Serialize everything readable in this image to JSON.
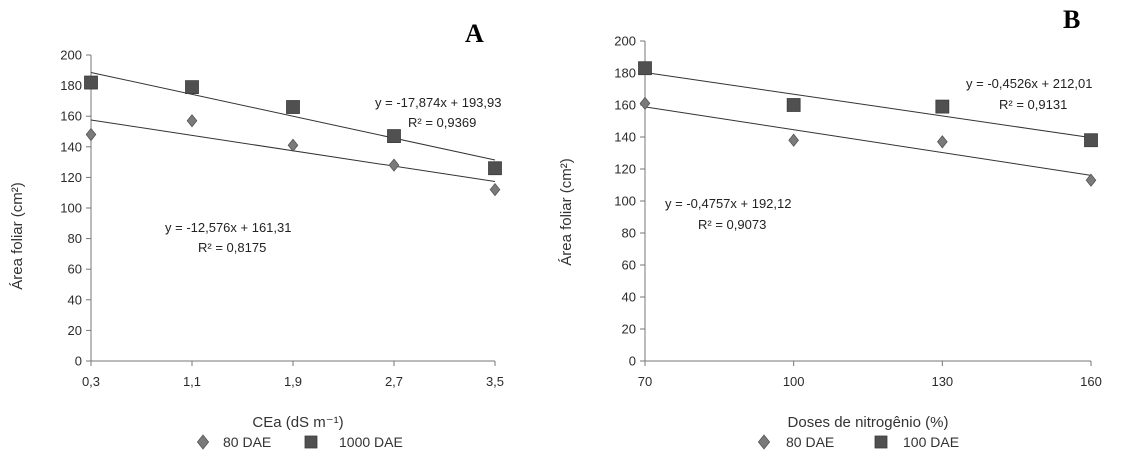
{
  "colors": {
    "series_80": "#7a7a7a",
    "series_late": "#505050",
    "axis": "#777777",
    "trend": "#333333"
  },
  "chart_data": [
    {
      "type": "scatter",
      "panel_label": "A",
      "xlabel": "CEa (dS m⁻¹)",
      "ylabel": "Área foliar (cm²)",
      "x_ticks": [
        "0,3",
        "1,1",
        "1,9",
        "2,7",
        "3,5"
      ],
      "x_values": [
        0.3,
        1.1,
        1.9,
        2.7,
        3.5
      ],
      "xlim": [
        0.3,
        3.5
      ],
      "ylim": [
        0,
        200
      ],
      "y_ticks": [
        0,
        20,
        40,
        60,
        80,
        100,
        120,
        140,
        160,
        180,
        200
      ],
      "grid": false,
      "legend_position": "bottom",
      "series": [
        {
          "name": "80 DAE",
          "marker": "diamond",
          "values": [
            148,
            157,
            141,
            128,
            112
          ],
          "trend": {
            "slope": -12.576,
            "intercept": 161.31
          },
          "equation": "y = -12,576x + 161,31",
          "r2": "R² = 0,8175"
        },
        {
          "name": "1000 DAE",
          "marker": "square",
          "values": [
            182,
            179,
            166,
            147,
            126
          ],
          "trend": {
            "slope": -17.874,
            "intercept": 193.93
          },
          "equation": "y = -17,874x + 193,93",
          "r2": "R² = 0,9369"
        }
      ]
    },
    {
      "type": "scatter",
      "panel_label": "B",
      "xlabel": "Doses de nitrogênio (%)",
      "ylabel": "Área foliar (cm²)",
      "x_ticks": [
        "70",
        "100",
        "130",
        "160"
      ],
      "x_values": [
        70,
        100,
        130,
        160
      ],
      "xlim": [
        70,
        160
      ],
      "ylim": [
        0,
        200
      ],
      "y_ticks": [
        0,
        20,
        40,
        60,
        80,
        100,
        120,
        140,
        160,
        180,
        200
      ],
      "grid": false,
      "legend_position": "bottom",
      "series": [
        {
          "name": "80 DAE",
          "marker": "diamond",
          "values": [
            161,
            138,
            137,
            113
          ],
          "trend": {
            "slope": -0.4757,
            "intercept": 192.12
          },
          "equation": "y = -0,4757x + 192,12",
          "r2": "R² = 0,9073"
        },
        {
          "name": "100 DAE",
          "marker": "square",
          "values": [
            183,
            160,
            159,
            138
          ],
          "trend": {
            "slope": -0.4526,
            "intercept": 212.01
          },
          "equation": "y = -0,4526x + 212,01",
          "r2": "R² = 0,9131"
        }
      ]
    }
  ]
}
